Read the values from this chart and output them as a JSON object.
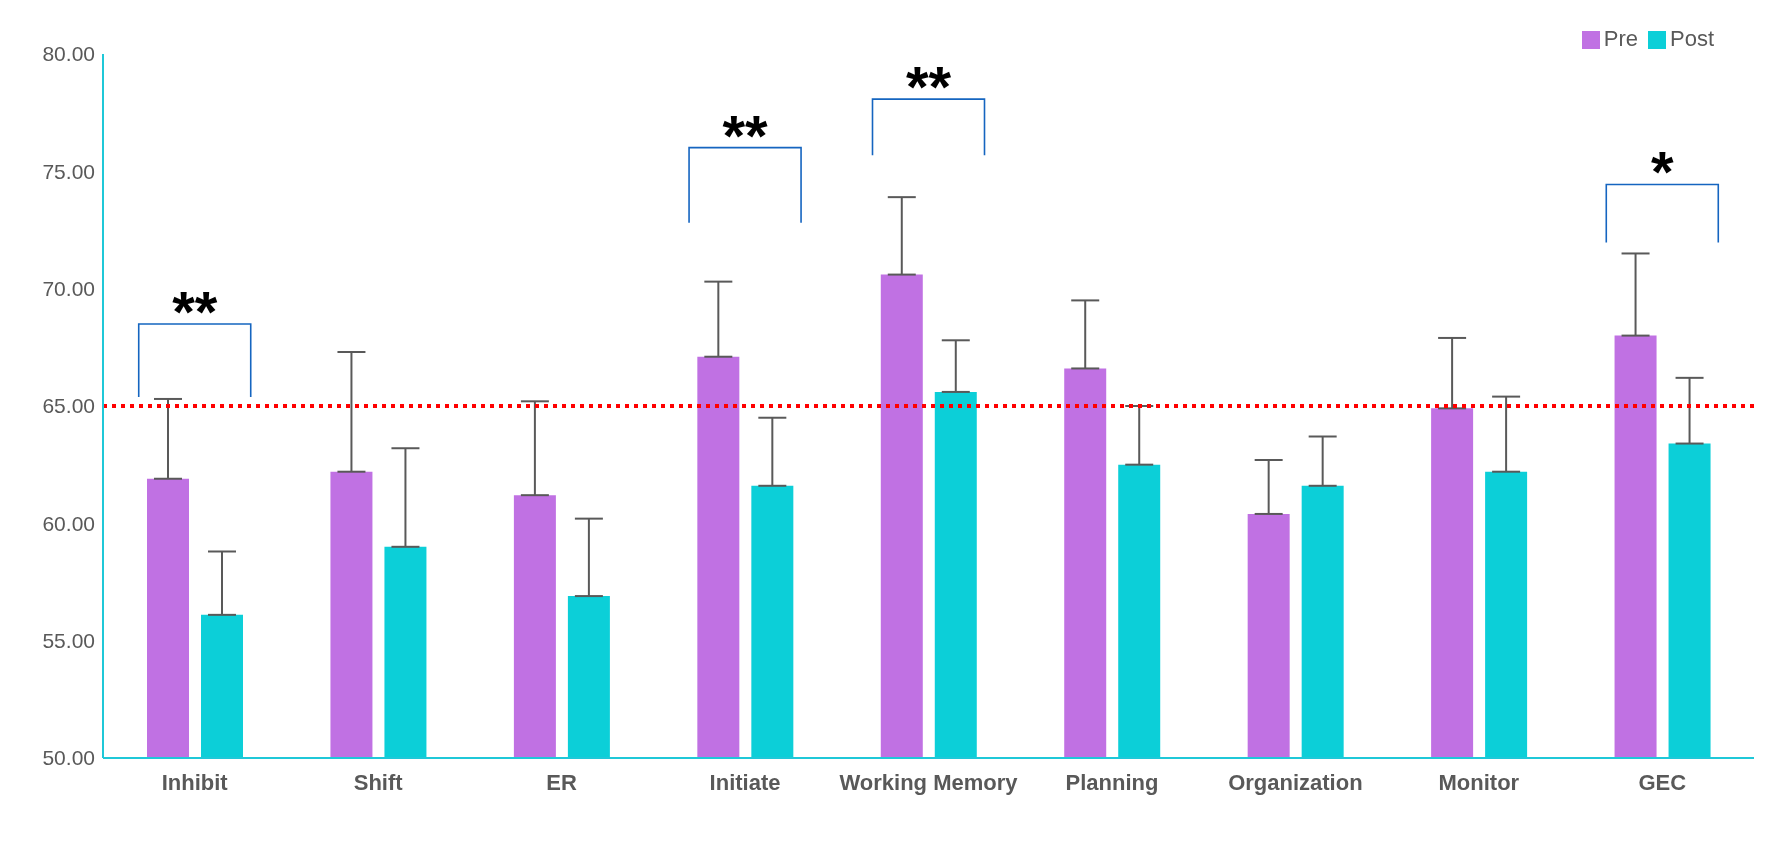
{
  "chart_data": {
    "type": "bar",
    "categories": [
      "Inhibit",
      "Shift",
      "ER",
      "Initiate",
      "Working Memory",
      "Planning",
      "Organization",
      "Monitor",
      "GEC"
    ],
    "series": [
      {
        "name": "Pre",
        "color": "#c071e3",
        "values": [
          61.9,
          62.2,
          61.2,
          67.1,
          70.6,
          66.6,
          60.4,
          64.9,
          68.0
        ],
        "errors": [
          [
            61.9,
            65.3
          ],
          [
            62.2,
            67.3
          ],
          [
            61.2,
            65.2
          ],
          [
            67.1,
            70.3
          ],
          [
            70.6,
            73.9
          ],
          [
            66.6,
            69.5
          ],
          [
            60.4,
            62.7
          ],
          [
            64.9,
            67.9
          ],
          [
            68.0,
            71.5
          ]
        ]
      },
      {
        "name": "Post",
        "color": "#0ccfd8",
        "values": [
          56.1,
          59.0,
          56.9,
          61.6,
          65.6,
          62.5,
          61.6,
          62.2,
          63.4
        ],
        "errors": [
          [
            56.1,
            58.8
          ],
          [
            59.0,
            63.2
          ],
          [
            56.9,
            60.2
          ],
          [
            61.6,
            64.5
          ],
          [
            65.6,
            67.8
          ],
          [
            62.5,
            65.0
          ],
          [
            61.6,
            63.7
          ],
          [
            62.2,
            65.4
          ],
          [
            63.4,
            66.2
          ]
        ]
      }
    ],
    "ylim": [
      50,
      80
    ],
    "yticks": [
      {
        "value": 50,
        "label": "50.00"
      },
      {
        "value": 55,
        "label": "55.00"
      },
      {
        "value": 60,
        "label": "60.00"
      },
      {
        "value": 65,
        "label": "65.00"
      },
      {
        "value": 70,
        "label": "70.00"
      },
      {
        "value": 75,
        "label": "75.00"
      },
      {
        "value": 80,
        "label": "80.00"
      }
    ],
    "ref_lines": [
      {
        "axis": "y",
        "value": 65,
        "color": "#ff0000",
        "line_style": "dotted"
      }
    ],
    "annotations": [
      "**",
      "**",
      "**",
      "*"
    ],
    "grid": false,
    "legend": "top right"
  }
}
